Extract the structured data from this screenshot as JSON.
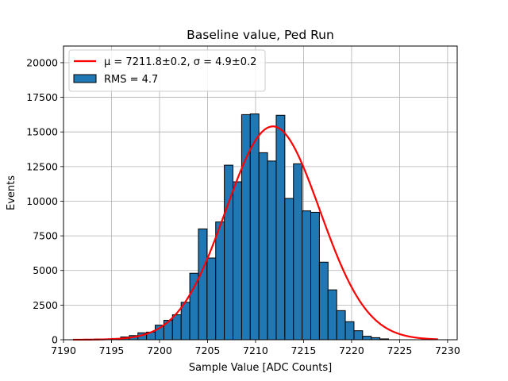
{
  "chart_data": {
    "type": "bar",
    "title": "Baseline value, Ped Run",
    "xlabel": "Sample Value [ADC Counts]",
    "ylabel": "Events",
    "xlim": [
      7190,
      7231
    ],
    "ylim": [
      0,
      21200
    ],
    "xticks": [
      7190,
      7195,
      7200,
      7205,
      7210,
      7215,
      7220,
      7225,
      7230
    ],
    "yticks": [
      0,
      2500,
      5000,
      7500,
      10000,
      12500,
      15000,
      17500,
      20000
    ],
    "grid": true,
    "legend_position": "top-left",
    "histogram": {
      "name": "RMS = 4.7",
      "color": "#1f77b4",
      "edge_color": "#000000",
      "bin_width": 0.9,
      "bins": [
        {
          "x": 7191.9,
          "value": 20
        },
        {
          "x": 7192.8,
          "value": 30
        },
        {
          "x": 7193.7,
          "value": 50
        },
        {
          "x": 7194.6,
          "value": 60
        },
        {
          "x": 7195.5,
          "value": 90
        },
        {
          "x": 7196.4,
          "value": 200
        },
        {
          "x": 7197.3,
          "value": 300
        },
        {
          "x": 7198.2,
          "value": 500
        },
        {
          "x": 7199.1,
          "value": 550
        },
        {
          "x": 7200.0,
          "value": 1050
        },
        {
          "x": 7200.9,
          "value": 1400
        },
        {
          "x": 7201.8,
          "value": 1800
        },
        {
          "x": 7202.7,
          "value": 2700
        },
        {
          "x": 7203.6,
          "value": 4800
        },
        {
          "x": 7204.5,
          "value": 8000
        },
        {
          "x": 7205.4,
          "value": 5900
        },
        {
          "x": 7206.3,
          "value": 8500
        },
        {
          "x": 7207.2,
          "value": 12600
        },
        {
          "x": 7208.1,
          "value": 11400
        },
        {
          "x": 7209.0,
          "value": 16250
        },
        {
          "x": 7209.9,
          "value": 16300
        },
        {
          "x": 7210.8,
          "value": 13500
        },
        {
          "x": 7211.7,
          "value": 12900
        },
        {
          "x": 7212.6,
          "value": 16200
        },
        {
          "x": 7213.5,
          "value": 10200
        },
        {
          "x": 7214.4,
          "value": 12700
        },
        {
          "x": 7215.3,
          "value": 9300
        },
        {
          "x": 7216.2,
          "value": 9200
        },
        {
          "x": 7217.1,
          "value": 5600
        },
        {
          "x": 7218.0,
          "value": 3600
        },
        {
          "x": 7218.9,
          "value": 2100
        },
        {
          "x": 7219.8,
          "value": 1300
        },
        {
          "x": 7220.7,
          "value": 650
        },
        {
          "x": 7221.6,
          "value": 250
        },
        {
          "x": 7222.5,
          "value": 150
        },
        {
          "x": 7223.4,
          "value": 60
        }
      ]
    },
    "fit": {
      "name": "$\\mu = 7211.8 \\pm 0.2$, $\\sigma = 4.9 \\pm 0.2$",
      "legend_label": "μ = 7211.8±0.2, σ = 4.9±0.2",
      "color": "#ff0000",
      "type": "gaussian",
      "mu": 7211.8,
      "sigma": 4.9,
      "amplitude": 15400,
      "x_range": [
        7191,
        7229
      ]
    }
  }
}
